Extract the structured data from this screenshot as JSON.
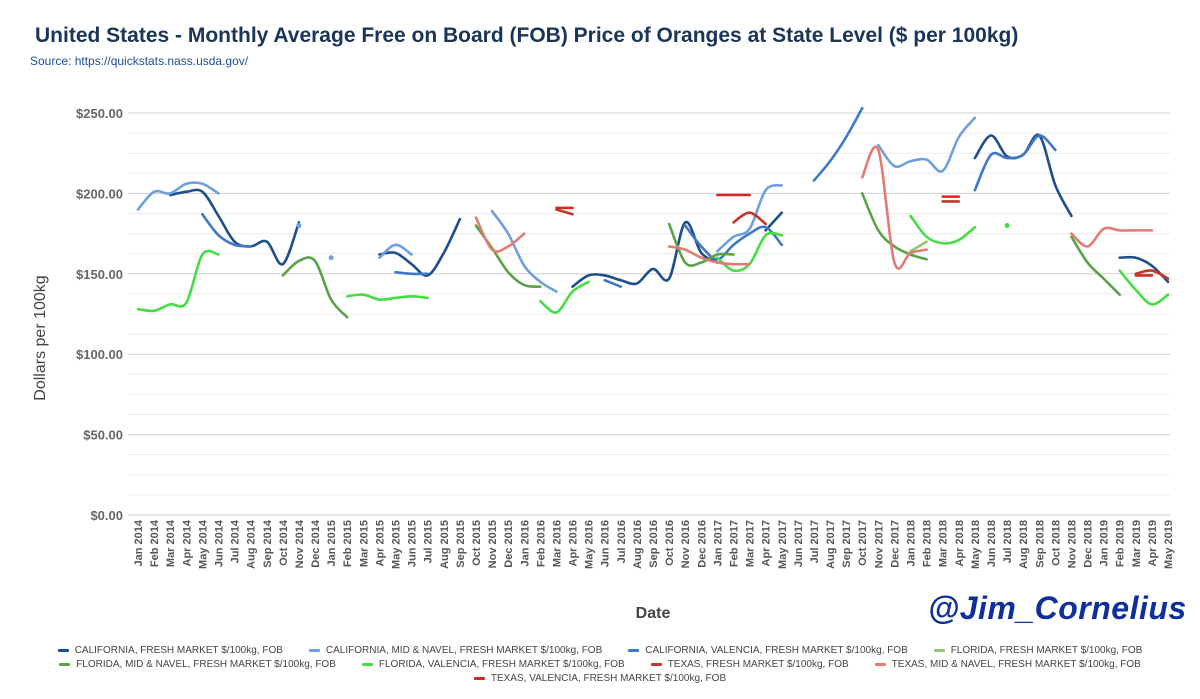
{
  "header": {
    "title": "United States - Monthly Average Free on Board (FOB) Price of Oranges at State Level ($ per 100kg)",
    "source": "Source: https://quickstats.nass.usda.gov/"
  },
  "watermark": "@Jim_Cornelius",
  "chart_data": {
    "type": "line",
    "title": "United States - Monthly Average Free on Board (FOB) Price of Oranges at State Level ($ per 100kg)",
    "xlabel": "Date",
    "ylabel": "Dollars per 100kg",
    "ylim": [
      0,
      250
    ],
    "yticks": [
      0,
      50,
      100,
      150,
      200,
      250
    ],
    "ytick_labels": [
      "$0.00",
      "$50.00",
      "$100.00",
      "$150.00",
      "$200.00",
      "$250.00"
    ],
    "grid": true,
    "legend_position": "bottom",
    "categories": [
      "Jan 2014",
      "Feb 2014",
      "Mar 2014",
      "Apr 2014",
      "May 2014",
      "Jun 2014",
      "Jul 2014",
      "Aug 2014",
      "Sep 2014",
      "Oct 2014",
      "Nov 2014",
      "Dec 2014",
      "Jan 2015",
      "Feb 2015",
      "Mar 2015",
      "Apr 2015",
      "May 2015",
      "Jun 2015",
      "Jul 2015",
      "Aug 2015",
      "Sep 2015",
      "Oct 2015",
      "Nov 2015",
      "Dec 2015",
      "Jan 2016",
      "Feb 2016",
      "Mar 2016",
      "Apr 2016",
      "May 2016",
      "Jun 2016",
      "Jul 2016",
      "Aug 2016",
      "Sep 2016",
      "Oct 2016",
      "Nov 2016",
      "Dec 2016",
      "Jan 2017",
      "Feb 2017",
      "Mar 2017",
      "Apr 2017",
      "May 2017",
      "Jun 2017",
      "Jul 2017",
      "Aug 2017",
      "Sep 2017",
      "Oct 2017",
      "Nov 2017",
      "Dec 2017",
      "Jan 2018",
      "Feb 2018",
      "Mar 2018",
      "Apr 2018",
      "May 2018",
      "Jun 2018",
      "Jul 2018",
      "Aug 2018",
      "Sep 2018",
      "Oct 2018",
      "Nov 2018",
      "Dec 2018",
      "Jan 2019",
      "Feb 2019",
      "Mar 2019",
      "Apr 2019",
      "May 2019"
    ],
    "series": [
      {
        "name": "CALIFORNIA, FRESH MARKET $/100kg, FOB",
        "color": "#1f4e8c",
        "values": [
          null,
          null,
          199,
          201,
          201,
          186,
          170,
          167,
          170,
          156,
          182,
          null,
          null,
          null,
          null,
          162,
          163,
          156,
          149,
          163,
          184,
          null,
          null,
          null,
          null,
          null,
          null,
          142,
          149,
          149,
          146,
          144,
          153,
          147,
          182,
          163,
          157,
          null,
          null,
          177,
          188,
          null,
          null,
          null,
          null,
          null,
          null,
          null,
          null,
          null,
          null,
          null,
          222,
          236,
          223,
          224,
          236,
          205,
          186,
          null,
          null,
          160,
          160,
          155,
          145
        ]
      },
      {
        "name": "CALIFORNIA, MID & NAVEL, FRESH MARKET $/100kg, FOB",
        "color": "#6f9fdc",
        "values": [
          190,
          201,
          200,
          206,
          206,
          200,
          null,
          null,
          null,
          null,
          180,
          null,
          160,
          null,
          null,
          160,
          168,
          162,
          null,
          null,
          null,
          null,
          189,
          175,
          155,
          145,
          139,
          null,
          null,
          null,
          null,
          null,
          null,
          null,
          null,
          null,
          164,
          173,
          178,
          202,
          205,
          null,
          null,
          null,
          null,
          null,
          230,
          217,
          220,
          221,
          214,
          235,
          247,
          null,
          null,
          null,
          null,
          null,
          null,
          null,
          null,
          null,
          null,
          null,
          null
        ]
      },
      {
        "name": "CALIFORNIA, VALENCIA, FRESH MARKET $/100kg, FOB",
        "color": "#3f78c7",
        "values": [
          null,
          null,
          null,
          null,
          187,
          174,
          168,
          167,
          null,
          null,
          null,
          null,
          null,
          null,
          null,
          null,
          151,
          150,
          150,
          null,
          null,
          null,
          null,
          null,
          null,
          null,
          null,
          null,
          null,
          146,
          142,
          null,
          null,
          null,
          180,
          167,
          159,
          168,
          175,
          179,
          168,
          null,
          208,
          220,
          235,
          253,
          null,
          null,
          null,
          null,
          null,
          null,
          202,
          224,
          222,
          224,
          236,
          227,
          null,
          null,
          null,
          null,
          null,
          null,
          null
        ]
      },
      {
        "name": "FLORIDA, FRESH MARKET $/100kg, FOB",
        "color": "#8fc870",
        "values": [
          null,
          null,
          null,
          null,
          null,
          null,
          null,
          null,
          null,
          null,
          null,
          null,
          null,
          null,
          null,
          null,
          null,
          null,
          null,
          null,
          null,
          null,
          null,
          null,
          null,
          null,
          null,
          null,
          null,
          null,
          null,
          null,
          null,
          null,
          null,
          null,
          null,
          null,
          null,
          null,
          null,
          null,
          null,
          null,
          null,
          null,
          null,
          null,
          164,
          170,
          null,
          null,
          null,
          null,
          null,
          null,
          null,
          null,
          null,
          null,
          null,
          null,
          null,
          null,
          null
        ]
      },
      {
        "name": "FLORIDA, MID & NAVEL, FRESH MARKET $/100kg, FOB",
        "color": "#5aa248",
        "values": [
          null,
          null,
          null,
          null,
          null,
          null,
          null,
          null,
          null,
          149,
          158,
          158,
          134,
          123,
          null,
          null,
          null,
          null,
          null,
          null,
          null,
          180,
          166,
          151,
          143,
          142,
          null,
          null,
          null,
          null,
          null,
          null,
          null,
          181,
          157,
          157,
          162,
          162,
          null,
          null,
          null,
          null,
          null,
          null,
          null,
          200,
          177,
          167,
          162,
          159,
          null,
          null,
          null,
          null,
          null,
          null,
          null,
          null,
          173,
          157,
          147,
          137,
          null,
          null,
          null
        ]
      },
      {
        "name": "FLORIDA, VALENCIA, FRESH MARKET $/100kg, FOB",
        "color": "#44dd44",
        "values": [
          128,
          127,
          131,
          132,
          162,
          162,
          null,
          null,
          null,
          null,
          null,
          null,
          null,
          136,
          137,
          134,
          135,
          136,
          135,
          null,
          null,
          null,
          null,
          null,
          null,
          133,
          126,
          139,
          145,
          null,
          null,
          null,
          null,
          null,
          null,
          null,
          160,
          152,
          156,
          174,
          174,
          null,
          null,
          null,
          null,
          null,
          null,
          null,
          186,
          173,
          169,
          171,
          179,
          null,
          180,
          null,
          null,
          null,
          null,
          null,
          null,
          152,
          140,
          131,
          137
        ]
      },
      {
        "name": "TEXAS, FRESH MARKET $/100kg, FOB",
        "color": "#c0392b",
        "values": [
          null,
          null,
          null,
          null,
          null,
          null,
          null,
          null,
          null,
          null,
          null,
          null,
          null,
          null,
          null,
          null,
          null,
          null,
          null,
          null,
          null,
          null,
          null,
          null,
          null,
          null,
          190,
          187,
          null,
          null,
          null,
          null,
          null,
          null,
          null,
          null,
          null,
          182,
          188,
          181,
          null,
          null,
          null,
          null,
          null,
          null,
          null,
          null,
          null,
          null,
          195,
          195,
          null,
          null,
          null,
          null,
          null,
          null,
          null,
          null,
          null,
          null,
          150,
          152,
          147
        ]
      },
      {
        "name": "TEXAS, MID & NAVEL, FRESH MARKET $/100kg, FOB",
        "color": "#e07c73",
        "values": [
          null,
          null,
          null,
          null,
          null,
          null,
          null,
          null,
          null,
          null,
          null,
          null,
          null,
          null,
          null,
          null,
          null,
          null,
          null,
          null,
          null,
          185,
          165,
          167,
          175,
          null,
          null,
          null,
          null,
          null,
          null,
          null,
          null,
          167,
          165,
          160,
          157,
          156,
          156,
          null,
          null,
          null,
          null,
          null,
          null,
          210,
          227,
          157,
          163,
          165,
          null,
          null,
          null,
          null,
          null,
          null,
          null,
          null,
          175,
          167,
          178,
          177,
          177,
          177,
          null
        ]
      },
      {
        "name": "TEXAS, VALENCIA, FRESH MARKET $/100kg, FOB",
        "color": "#d42a1e",
        "values": [
          null,
          null,
          null,
          null,
          null,
          null,
          null,
          null,
          null,
          null,
          null,
          null,
          null,
          null,
          null,
          null,
          null,
          null,
          null,
          null,
          null,
          null,
          null,
          null,
          null,
          null,
          191,
          191,
          null,
          null,
          null,
          null,
          null,
          null,
          null,
          null,
          199,
          199,
          199,
          null,
          null,
          null,
          null,
          null,
          null,
          null,
          null,
          null,
          null,
          null,
          198,
          198,
          null,
          null,
          null,
          null,
          null,
          null,
          null,
          null,
          null,
          null,
          149,
          149,
          null
        ]
      }
    ]
  }
}
